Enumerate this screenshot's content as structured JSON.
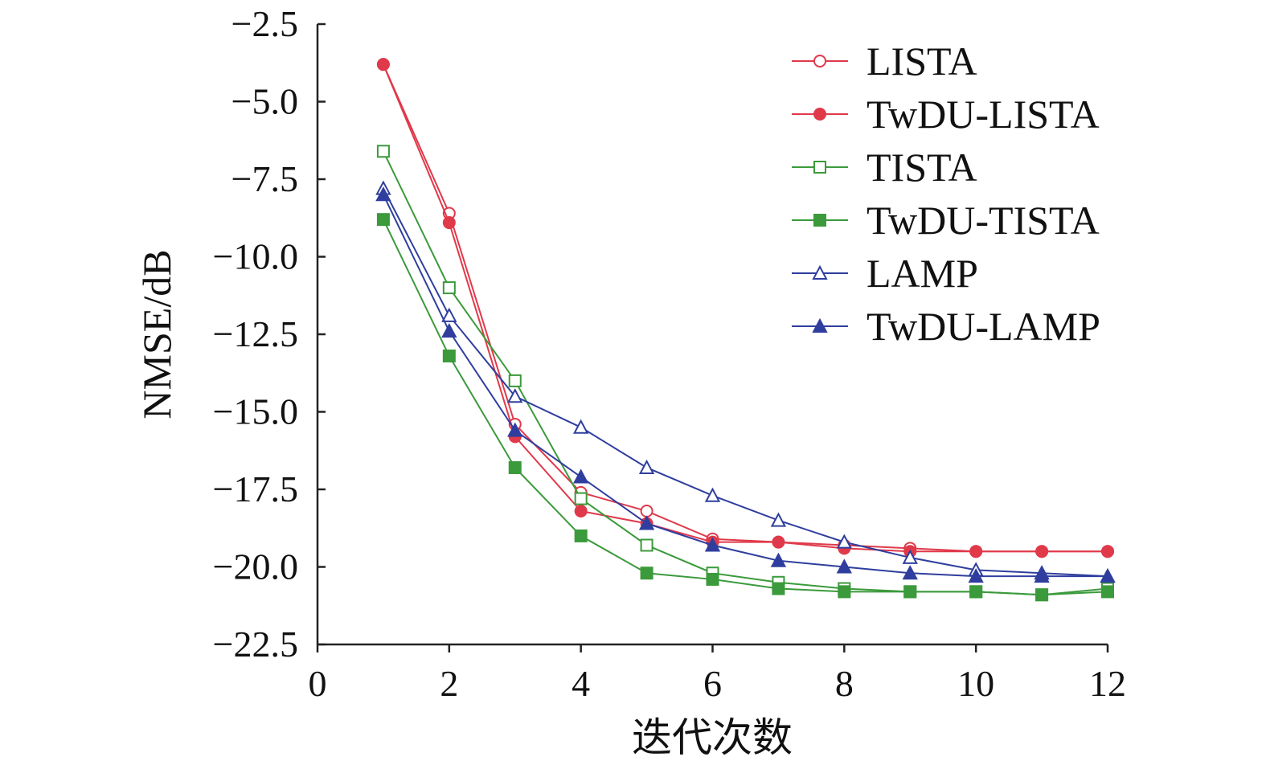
{
  "chart_data": {
    "type": "line",
    "title": "",
    "xlabel": "迭代次数",
    "ylabel": "NMSE/dB",
    "xlim": [
      0,
      12
    ],
    "ylim": [
      -22.5,
      -2.5
    ],
    "xticks": [
      0,
      2,
      4,
      6,
      8,
      10,
      12
    ],
    "xtick_labels": [
      "0",
      "2",
      "4",
      "6",
      "8",
      "10",
      "12"
    ],
    "yticks": [
      -2.5,
      -5.0,
      -7.5,
      -10.0,
      -12.5,
      -15.0,
      -17.5,
      -20.0,
      -22.5
    ],
    "ytick_labels": [
      "−2.5",
      "−5.0",
      "−7.5",
      "−10.0",
      "−12.5",
      "−15.0",
      "−17.5",
      "−20.0",
      "−22.5"
    ],
    "grid": false,
    "legend_position": "top-right",
    "x": [
      1,
      2,
      3,
      4,
      5,
      6,
      7,
      8,
      9,
      10,
      11,
      12
    ],
    "series": [
      {
        "name": "LISTA",
        "color": "#e0394a",
        "marker": "circle",
        "filled": false,
        "values": [
          -3.8,
          -8.6,
          -15.4,
          -17.6,
          -18.2,
          -19.1,
          -19.2,
          -19.3,
          -19.4,
          -19.5,
          -19.5,
          -19.5
        ]
      },
      {
        "name": "TwDU-LISTA",
        "color": "#e0394a",
        "marker": "circle",
        "filled": true,
        "values": [
          -3.8,
          -8.9,
          -15.8,
          -18.2,
          -18.6,
          -19.2,
          -19.2,
          -19.4,
          -19.5,
          -19.5,
          -19.5,
          -19.5
        ]
      },
      {
        "name": "TISTA",
        "color": "#3b9a3b",
        "marker": "square",
        "filled": false,
        "values": [
          -6.6,
          -11.0,
          -14.0,
          -17.8,
          -19.3,
          -20.2,
          -20.5,
          -20.7,
          -20.8,
          -20.8,
          -20.9,
          -20.7
        ]
      },
      {
        "name": "TwDU-TISTA",
        "color": "#3b9a3b",
        "marker": "square",
        "filled": true,
        "values": [
          -8.8,
          -13.2,
          -16.8,
          -19.0,
          -20.2,
          -20.4,
          -20.7,
          -20.8,
          -20.8,
          -20.8,
          -20.9,
          -20.8
        ]
      },
      {
        "name": "LAMP",
        "color": "#2f3e9e",
        "marker": "triangle",
        "filled": false,
        "values": [
          -7.8,
          -11.9,
          -14.5,
          -15.5,
          -16.8,
          -17.7,
          -18.5,
          -19.2,
          -19.7,
          -20.1,
          -20.2,
          -20.3
        ]
      },
      {
        "name": "TwDU-LAMP",
        "color": "#2f3e9e",
        "marker": "triangle",
        "filled": true,
        "values": [
          -8.0,
          -12.4,
          -15.6,
          -17.1,
          -18.6,
          -19.3,
          -19.8,
          -20.0,
          -20.2,
          -20.3,
          -20.3,
          -20.3
        ]
      }
    ]
  }
}
